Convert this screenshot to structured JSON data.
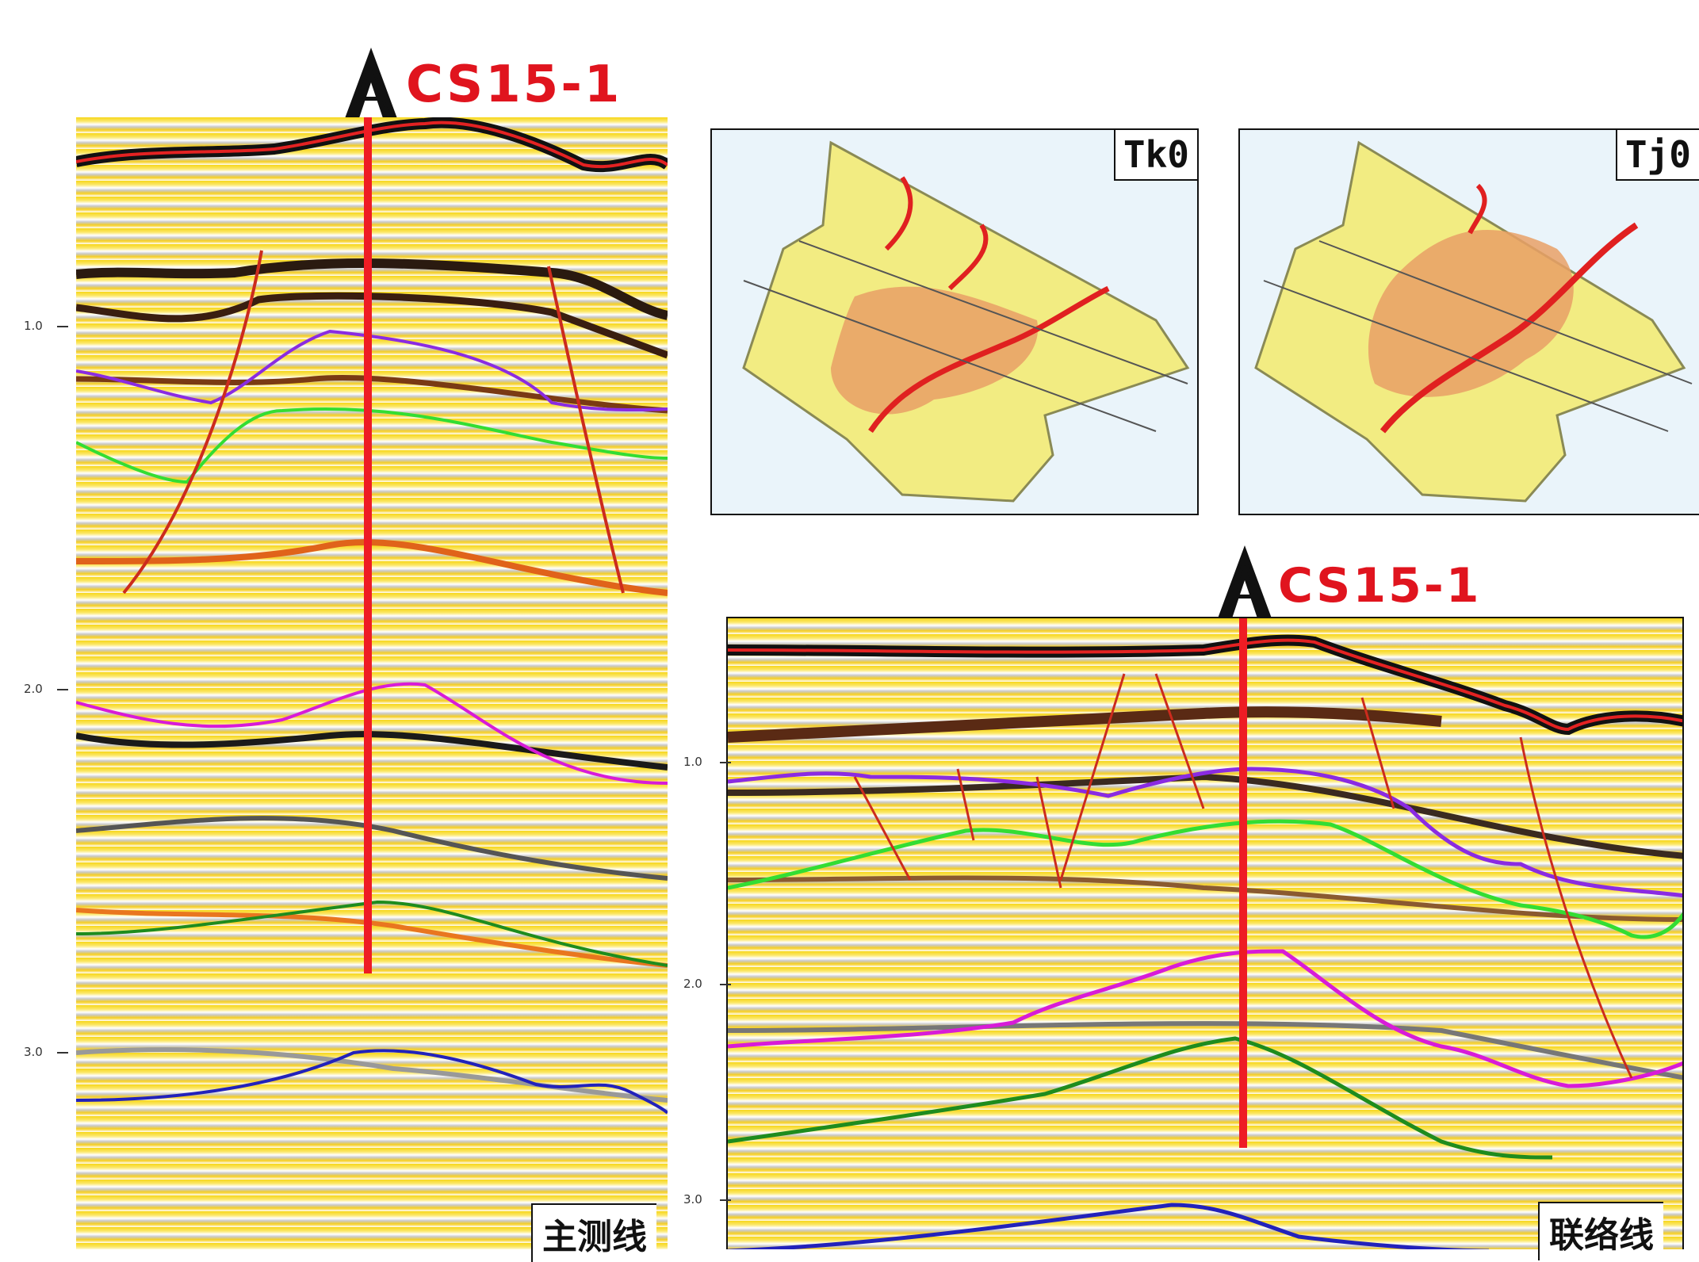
{
  "wells": [
    {
      "id": "left",
      "name": "CS15-1"
    },
    {
      "id": "right",
      "name": "CS15-1"
    }
  ],
  "sections": {
    "main_line": {
      "label": "主测线",
      "axis_ticks": [
        "1.0",
        "2.0",
        "3.0"
      ]
    },
    "tie_line": {
      "label": "联络线",
      "axis_ticks": [
        "1.0",
        "2.0",
        "3.0"
      ]
    }
  },
  "maps": [
    {
      "id": "tk0",
      "label": "Tk0"
    },
    {
      "id": "tj0",
      "label": "Tj0"
    }
  ],
  "horizon_colors": {
    "seafloor": "#e32222",
    "purple": "#8a2be2",
    "lime": "#33dd33",
    "magenta": "#d81bd8",
    "green": "#1e8c1e",
    "blue": "#2222bb",
    "fault": "#cc2b1d",
    "well": "#ee1c24"
  }
}
